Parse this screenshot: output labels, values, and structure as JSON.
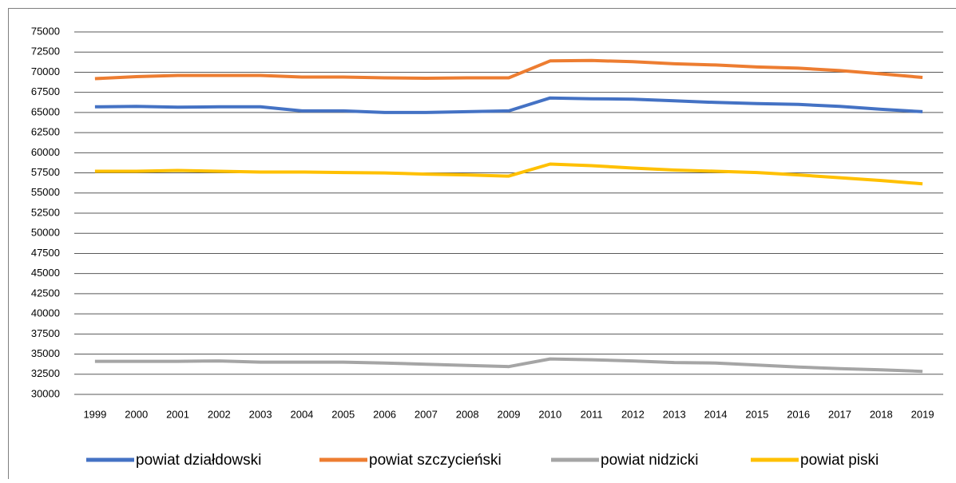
{
  "chart_data": {
    "type": "line",
    "categories": [
      "1999",
      "2000",
      "2001",
      "2002",
      "2003",
      "2004",
      "2005",
      "2006",
      "2007",
      "2008",
      "2009",
      "2010",
      "2011",
      "2012",
      "2013",
      "2014",
      "2015",
      "2016",
      "2017",
      "2018",
      "2019"
    ],
    "series": [
      {
        "name": "powiat działdowski",
        "color": "#4472c4",
        "values": [
          65700,
          65750,
          65650,
          65700,
          65700,
          65200,
          65200,
          65000,
          65000,
          65100,
          65200,
          66800,
          66700,
          66650,
          66450,
          66250,
          66100,
          66000,
          65750,
          65400,
          65100
        ]
      },
      {
        "name": "powiat szczycieński",
        "color": "#ed7d31",
        "values": [
          69200,
          69450,
          69600,
          69600,
          69600,
          69400,
          69400,
          69300,
          69250,
          69300,
          69300,
          71400,
          71450,
          71300,
          71050,
          70900,
          70650,
          70500,
          70200,
          69800,
          69350
        ]
      },
      {
        "name": "powiat nidzicki",
        "color": "#a5a5a5",
        "values": [
          34100,
          34100,
          34100,
          34150,
          34000,
          34000,
          34000,
          33900,
          33750,
          33600,
          33450,
          34400,
          34300,
          34150,
          33950,
          33900,
          33650,
          33400,
          33200,
          33050,
          32850
        ]
      },
      {
        "name": "powiat piski",
        "color": "#ffc000",
        "values": [
          57700,
          57700,
          57800,
          57700,
          57600,
          57600,
          57550,
          57500,
          57350,
          57250,
          57100,
          58600,
          58400,
          58100,
          57850,
          57700,
          57550,
          57250,
          56900,
          56550,
          56150
        ]
      }
    ],
    "ylim": [
      30000,
      75000
    ],
    "yticks": [
      30000,
      32500,
      35000,
      37500,
      40000,
      42500,
      45000,
      47500,
      50000,
      52500,
      55000,
      57500,
      60000,
      62500,
      65000,
      67500,
      70000,
      72500,
      75000
    ],
    "grid": true,
    "legend": "bottom"
  }
}
